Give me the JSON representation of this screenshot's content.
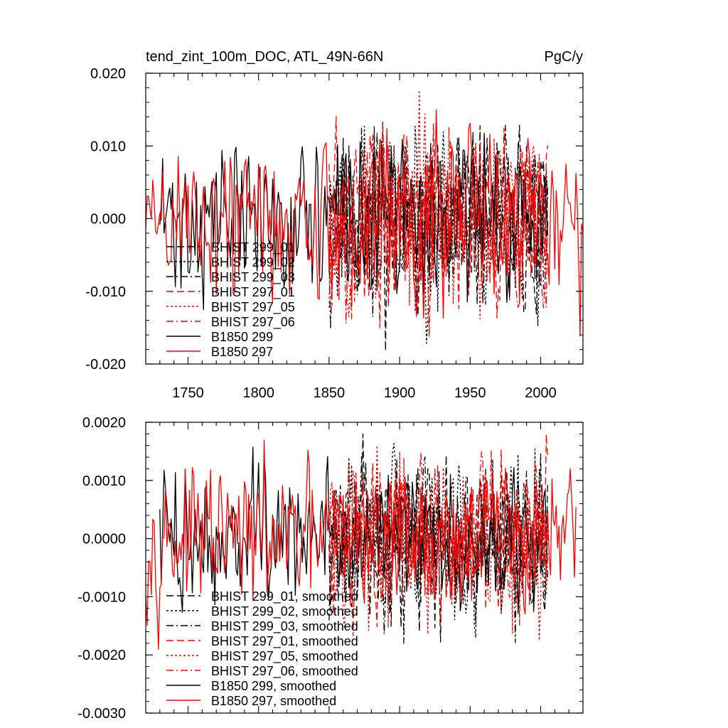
{
  "chart_data": [
    {
      "type": "line",
      "title": "tend_zint_100m_DOC, ATL_49N-66N",
      "units": "PgC/y",
      "xlabel": "",
      "ylabel": "",
      "xlim": [
        1720,
        2030
      ],
      "ylim": [
        -0.02,
        0.02
      ],
      "x_ticks": [
        1750,
        1800,
        1850,
        1900,
        1950,
        2000
      ],
      "x_tick_labels": [
        "1750",
        "1800",
        "1850",
        "1900",
        "1950",
        "2000"
      ],
      "y_ticks": [
        -0.02,
        -0.01,
        0,
        0.01,
        0.02
      ],
      "y_tick_labels": [
        "-0.020",
        "-0.010",
        "0.000",
        "0.010",
        "0.020"
      ],
      "legend_position": "bottom-left",
      "series": [
        {
          "name": "BHIST 299_01",
          "color": "#000000",
          "dash": "dash",
          "x_range": [
            1850,
            2005
          ],
          "amplitude": 0.0065,
          "seed": 11
        },
        {
          "name": "BHIST 299_02",
          "color": "#000000",
          "dash": "dot",
          "x_range": [
            1850,
            2005
          ],
          "amplitude": 0.0065,
          "seed": 23
        },
        {
          "name": "BHIST 299_03",
          "color": "#000000",
          "dash": "dashdot",
          "x_range": [
            1850,
            2005
          ],
          "amplitude": 0.0065,
          "seed": 37
        },
        {
          "name": "BHIST 297_01",
          "color": "#ff0000",
          "dash": "dash",
          "x_range": [
            1850,
            2005
          ],
          "amplitude": 0.0065,
          "seed": 41
        },
        {
          "name": "BHIST 297_05",
          "color": "#ff0000",
          "dash": "dot",
          "x_range": [
            1850,
            2005
          ],
          "amplitude": 0.0065,
          "seed": 53
        },
        {
          "name": "BHIST 297_06",
          "color": "#ff0000",
          "dash": "dashdot",
          "x_range": [
            1850,
            2005
          ],
          "amplitude": 0.0065,
          "seed": 67
        },
        {
          "name": "B1850 299",
          "color": "#000000",
          "dash": "solid",
          "x_range": [
            1730,
            2005
          ],
          "amplitude": 0.0055,
          "seed": 71
        },
        {
          "name": "B1850 297",
          "color": "#ff0000",
          "dash": "solid",
          "x_range": [
            1720,
            2030
          ],
          "amplitude": 0.006,
          "seed": 89
        }
      ]
    },
    {
      "type": "line",
      "title": "",
      "xlabel": "",
      "ylabel": "",
      "xlim": [
        1720,
        2030
      ],
      "ylim": [
        -0.003,
        0.002
      ],
      "x_ticks": [
        1750,
        1800,
        1850,
        1900,
        1950,
        2000
      ],
      "x_tick_labels": [],
      "y_ticks": [
        -0.003,
        -0.002,
        -0.001,
        0,
        0.001,
        0.002
      ],
      "y_tick_labels": [
        "-0.0030",
        "-0.0020",
        "-0.0010",
        "0.0000",
        "0.0010",
        "0.0020"
      ],
      "legend_position": "bottom-left",
      "series": [
        {
          "name": "BHIST 299_01, smoothed",
          "color": "#000000",
          "dash": "dash",
          "x_range": [
            1850,
            2005
          ],
          "amplitude": 0.0007,
          "seed": 13
        },
        {
          "name": "BHIST 299_02, smoothed",
          "color": "#000000",
          "dash": "dot",
          "x_range": [
            1850,
            2005
          ],
          "amplitude": 0.0007,
          "seed": 29
        },
        {
          "name": "BHIST 299_03, smoothed",
          "color": "#000000",
          "dash": "dashdot",
          "x_range": [
            1850,
            2005
          ],
          "amplitude": 0.0007,
          "seed": 31
        },
        {
          "name": "BHIST 297_01, smoothed",
          "color": "#ff0000",
          "dash": "dash",
          "x_range": [
            1850,
            2005
          ],
          "amplitude": 0.0007,
          "seed": 43
        },
        {
          "name": "BHIST 297_05, smoothed",
          "color": "#ff0000",
          "dash": "dot",
          "x_range": [
            1850,
            2005
          ],
          "amplitude": 0.0007,
          "seed": 59
        },
        {
          "name": "BHIST 297_06, smoothed",
          "color": "#ff0000",
          "dash": "dashdot",
          "x_range": [
            1850,
            2005
          ],
          "amplitude": 0.0007,
          "seed": 61
        },
        {
          "name": "B1850 299, smoothed",
          "color": "#000000",
          "dash": "solid",
          "x_range": [
            1730,
            2005
          ],
          "amplitude": 0.0006,
          "seed": 73
        },
        {
          "name": "B1850 297, smoothed",
          "color": "#ff0000",
          "dash": "solid",
          "x_range": [
            1720,
            2025
          ],
          "amplitude": 0.0006,
          "seed": 97
        }
      ]
    }
  ]
}
